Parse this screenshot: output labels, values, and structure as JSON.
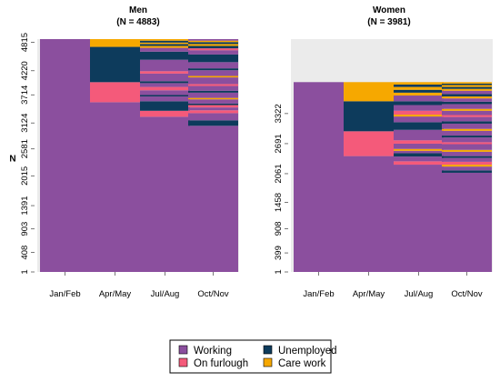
{
  "chart_data": [
    {
      "type": "heatmap",
      "title": "Men",
      "subtitle": "(N = 4883)",
      "xlabel": "",
      "ylabel": "N",
      "total": 4883,
      "categories": [
        "Jan/Feb",
        "Apr/May",
        "Jul/Aug",
        "Oct/Nov"
      ],
      "yticks": [
        1,
        408,
        903,
        1391,
        2015,
        2581,
        3124,
        3714,
        4220,
        4815
      ],
      "grid": false,
      "columns": [
        [
          {
            "state": "Working",
            "from": 1,
            "to": 4883
          }
        ],
        [
          {
            "state": "Working",
            "from": 1,
            "to": 3560
          },
          {
            "state": "On furlough",
            "from": 3560,
            "to": 3980
          },
          {
            "state": "Unemployed",
            "from": 3980,
            "to": 4720
          },
          {
            "state": "Care work",
            "from": 4720,
            "to": 4883
          }
        ],
        [
          {
            "state": "Working",
            "from": 1,
            "to": 3255
          },
          {
            "state": "On furlough",
            "from": 3255,
            "to": 3380
          },
          {
            "state": "Unemployed",
            "from": 3380,
            "to": 3580
          },
          {
            "state": "Working",
            "from": 3580,
            "to": 3680
          },
          {
            "state": "Unemployed",
            "from": 3680,
            "to": 3710
          },
          {
            "state": "Working",
            "from": 3710,
            "to": 3810
          },
          {
            "state": "On furlough",
            "from": 3810,
            "to": 3880
          },
          {
            "state": "Working",
            "from": 3880,
            "to": 3960
          },
          {
            "state": "Unemployed",
            "from": 3960,
            "to": 4000
          },
          {
            "state": "Working",
            "from": 4000,
            "to": 4160
          },
          {
            "state": "On furlough",
            "from": 4160,
            "to": 4210
          },
          {
            "state": "Working",
            "from": 4210,
            "to": 4450
          },
          {
            "state": "Unemployed",
            "from": 4450,
            "to": 4620
          },
          {
            "state": "Working",
            "from": 4620,
            "to": 4700
          },
          {
            "state": "Care work",
            "from": 4700,
            "to": 4740
          },
          {
            "state": "Unemployed",
            "from": 4740,
            "to": 4780
          },
          {
            "state": "Care work",
            "from": 4780,
            "to": 4810
          },
          {
            "state": "Unemployed",
            "from": 4810,
            "to": 4850
          },
          {
            "state": "Care work",
            "from": 4850,
            "to": 4883
          }
        ],
        [
          {
            "state": "Working",
            "from": 1,
            "to": 3065
          },
          {
            "state": "Unemployed",
            "from": 3065,
            "to": 3180
          },
          {
            "state": "Working",
            "from": 3180,
            "to": 3330
          },
          {
            "state": "On furlough",
            "from": 3330,
            "to": 3390
          },
          {
            "state": "Working",
            "from": 3390,
            "to": 3450
          },
          {
            "state": "On furlough",
            "from": 3450,
            "to": 3500
          },
          {
            "state": "Unemployed",
            "from": 3500,
            "to": 3530
          },
          {
            "state": "Working",
            "from": 3530,
            "to": 3620
          },
          {
            "state": "Care work",
            "from": 3620,
            "to": 3650
          },
          {
            "state": "Working",
            "from": 3650,
            "to": 3760
          },
          {
            "state": "Unemployed",
            "from": 3760,
            "to": 3800
          },
          {
            "state": "Working",
            "from": 3800,
            "to": 3900
          },
          {
            "state": "On furlough",
            "from": 3900,
            "to": 3940
          },
          {
            "state": "Working",
            "from": 3940,
            "to": 4080
          },
          {
            "state": "Care work",
            "from": 4080,
            "to": 4110
          },
          {
            "state": "Working",
            "from": 4110,
            "to": 4230
          },
          {
            "state": "Unemployed",
            "from": 4230,
            "to": 4270
          },
          {
            "state": "Working",
            "from": 4270,
            "to": 4400
          },
          {
            "state": "Unemployed",
            "from": 4400,
            "to": 4560
          },
          {
            "state": "Working",
            "from": 4560,
            "to": 4650
          },
          {
            "state": "On furlough",
            "from": 4650,
            "to": 4690
          },
          {
            "state": "Unemployed",
            "from": 4690,
            "to": 4740
          },
          {
            "state": "Care work",
            "from": 4740,
            "to": 4780
          },
          {
            "state": "Unemployed",
            "from": 4780,
            "to": 4820
          },
          {
            "state": "Care work",
            "from": 4820,
            "to": 4850
          },
          {
            "state": "Working",
            "from": 4850,
            "to": 4883
          }
        ]
      ]
    },
    {
      "type": "heatmap",
      "title": "Women",
      "subtitle": "(N = 3981)",
      "xlabel": "",
      "ylabel": "",
      "total": 3981,
      "categories": [
        "Jan/Feb",
        "Apr/May",
        "Jul/Aug",
        "Oct/Nov"
      ],
      "yticks": [
        1,
        399,
        908,
        1458,
        2061,
        2691,
        3322
      ],
      "grid": false,
      "columns": [
        [
          {
            "state": "Working",
            "from": 1,
            "to": 3981
          }
        ],
        [
          {
            "state": "Working",
            "from": 1,
            "to": 2430
          },
          {
            "state": "On furlough",
            "from": 2430,
            "to": 2950
          },
          {
            "state": "Unemployed",
            "from": 2950,
            "to": 3580
          },
          {
            "state": "Care work",
            "from": 3580,
            "to": 3981
          }
        ],
        [
          {
            "state": "Working",
            "from": 1,
            "to": 2250
          },
          {
            "state": "On furlough",
            "from": 2250,
            "to": 2320
          },
          {
            "state": "Working",
            "from": 2320,
            "to": 2420
          },
          {
            "state": "Unemployed",
            "from": 2420,
            "to": 2490
          },
          {
            "state": "Working",
            "from": 2490,
            "to": 2540
          },
          {
            "state": "Care work",
            "from": 2540,
            "to": 2580
          },
          {
            "state": "Working",
            "from": 2580,
            "to": 2690
          },
          {
            "state": "On furlough",
            "from": 2690,
            "to": 2760
          },
          {
            "state": "Working",
            "from": 2760,
            "to": 2980
          },
          {
            "state": "Unemployed",
            "from": 2980,
            "to": 3140
          },
          {
            "state": "Working",
            "from": 3140,
            "to": 3260
          },
          {
            "state": "Care work",
            "from": 3260,
            "to": 3300
          },
          {
            "state": "On furlough",
            "from": 3300,
            "to": 3380
          },
          {
            "state": "Working",
            "from": 3380,
            "to": 3500
          },
          {
            "state": "Unemployed",
            "from": 3500,
            "to": 3580
          },
          {
            "state": "Working",
            "from": 3580,
            "to": 3700
          },
          {
            "state": "Care work",
            "from": 3700,
            "to": 3760
          },
          {
            "state": "Unemployed",
            "from": 3760,
            "to": 3820
          },
          {
            "state": "Care work",
            "from": 3820,
            "to": 3880
          },
          {
            "state": "Unemployed",
            "from": 3880,
            "to": 3930
          },
          {
            "state": "Care work",
            "from": 3930,
            "to": 3981
          }
        ],
        [
          {
            "state": "Working",
            "from": 1,
            "to": 2080
          },
          {
            "state": "Unemployed",
            "from": 2080,
            "to": 2130
          },
          {
            "state": "Working",
            "from": 2130,
            "to": 2210
          },
          {
            "state": "Care work",
            "from": 2210,
            "to": 2250
          },
          {
            "state": "On furlough",
            "from": 2250,
            "to": 2310
          },
          {
            "state": "Working",
            "from": 2310,
            "to": 2390
          },
          {
            "state": "Unemployed",
            "from": 2390,
            "to": 2430
          },
          {
            "state": "Working",
            "from": 2430,
            "to": 2520
          },
          {
            "state": "Care work",
            "from": 2520,
            "to": 2560
          },
          {
            "state": "Working",
            "from": 2560,
            "to": 2680
          },
          {
            "state": "On furlough",
            "from": 2680,
            "to": 2720
          },
          {
            "state": "Working",
            "from": 2720,
            "to": 2820
          },
          {
            "state": "Unemployed",
            "from": 2820,
            "to": 2860
          },
          {
            "state": "Working",
            "from": 2860,
            "to": 2960
          },
          {
            "state": "Care work",
            "from": 2960,
            "to": 3000
          },
          {
            "state": "Working",
            "from": 3000,
            "to": 3110
          },
          {
            "state": "Unemployed",
            "from": 3110,
            "to": 3160
          },
          {
            "state": "Working",
            "from": 3160,
            "to": 3250
          },
          {
            "state": "On furlough",
            "from": 3250,
            "to": 3290
          },
          {
            "state": "Working",
            "from": 3290,
            "to": 3380
          },
          {
            "state": "Care work",
            "from": 3380,
            "to": 3420
          },
          {
            "state": "Working",
            "from": 3420,
            "to": 3520
          },
          {
            "state": "Unemployed",
            "from": 3520,
            "to": 3570
          },
          {
            "state": "Working",
            "from": 3570,
            "to": 3640
          },
          {
            "state": "Care work",
            "from": 3640,
            "to": 3680
          },
          {
            "state": "Unemployed",
            "from": 3680,
            "to": 3730
          },
          {
            "state": "Working",
            "from": 3730,
            "to": 3800
          },
          {
            "state": "Care work",
            "from": 3800,
            "to": 3840
          },
          {
            "state": "Unemployed",
            "from": 3840,
            "to": 3880
          },
          {
            "state": "Care work",
            "from": 3880,
            "to": 3920
          },
          {
            "state": "Unemployed",
            "from": 3920,
            "to": 3950
          },
          {
            "state": "Care work",
            "from": 3950,
            "to": 3981
          }
        ]
      ]
    }
  ],
  "legend": {
    "placement": "bottom",
    "items": [
      {
        "label": "Working",
        "color": "#8B4F9E"
      },
      {
        "label": "Unemployed",
        "color": "#0D3B5C"
      },
      {
        "label": "On furlough",
        "color": "#F45A7A"
      },
      {
        "label": "Care work",
        "color": "#F6A800"
      }
    ]
  },
  "colors": {
    "Working": "#8B4F9E",
    "On furlough": "#F45A7A",
    "Unemployed": "#0D3B5C",
    "Care work": "#F6A800",
    "panel_background": "#EBEBEB"
  }
}
